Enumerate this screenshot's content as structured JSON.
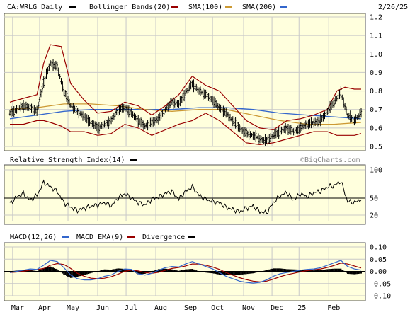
{
  "header": {
    "symbol_label": "CA:WRLG Daily",
    "date": "2/26/25"
  },
  "watermark": "©BigCharts.com",
  "months": [
    "Mar",
    "Apr",
    "May",
    "Jun",
    "Jul",
    "Aug",
    "Sep",
    "Oct",
    "Nov",
    "Dec",
    "25",
    "Feb"
  ],
  "colors": {
    "panel_bg": "#ffffdd",
    "price_bar": "#000000",
    "bollinger": "#990000",
    "sma100": "#cc9933",
    "sma200": "#3366cc",
    "rsi": "#000000",
    "macd": "#3366cc",
    "macd_ema": "#990000",
    "divergence": "#000000"
  },
  "chart_data": [
    {
      "type": "line",
      "panel": "price",
      "title": "CA:WRLG Daily",
      "legend": [
        {
          "name": "CA:WRLG Daily",
          "color": "#000000"
        },
        {
          "name": "Bollinger Bands(20)",
          "color": "#990000"
        },
        {
          "name": "SMA(100)",
          "color": "#cc9933"
        },
        {
          "name": "SMA(200)",
          "color": "#3366cc"
        }
      ],
      "x_labels": [
        "Mar",
        "Apr",
        "May",
        "Jun",
        "Jul",
        "Aug",
        "Sep",
        "Oct",
        "Nov",
        "Dec",
        "25",
        "Feb"
      ],
      "y_ticks": [
        "1.2",
        "1.1",
        "1.0",
        "0.9",
        "0.8",
        "0.7",
        "0.6",
        "0.5"
      ],
      "ylim": [
        0.5,
        1.2
      ],
      "series": [
        {
          "name": "CA:WRLG Daily",
          "kind": "ohlc-close",
          "color": "#000000",
          "x": [
            0,
            5,
            10,
            15,
            20,
            25,
            30,
            35,
            40,
            45,
            50,
            55,
            60,
            65,
            70,
            75,
            80,
            85,
            90,
            95,
            100,
            105,
            110,
            115,
            120,
            125,
            130,
            135,
            140,
            145,
            150,
            155,
            160,
            165,
            170,
            175,
            180,
            185,
            190,
            195,
            200,
            205,
            210,
            215,
            220,
            225,
            230,
            235,
            240,
            245,
            250,
            255,
            260
          ],
          "y": [
            0.68,
            0.7,
            0.72,
            0.71,
            0.69,
            0.85,
            0.95,
            0.93,
            0.8,
            0.72,
            0.69,
            0.66,
            0.63,
            0.6,
            0.62,
            0.64,
            0.7,
            0.71,
            0.68,
            0.64,
            0.61,
            0.63,
            0.65,
            0.7,
            0.74,
            0.73,
            0.79,
            0.84,
            0.8,
            0.78,
            0.75,
            0.71,
            0.68,
            0.64,
            0.6,
            0.57,
            0.56,
            0.54,
            0.53,
            0.56,
            0.58,
            0.6,
            0.58,
            0.6,
            0.62,
            0.63,
            0.64,
            0.69,
            0.74,
            0.79,
            0.67,
            0.64,
            0.68
          ]
        },
        {
          "name": "Bollinger Bands(20) upper",
          "color": "#990000",
          "x": [
            0,
            10,
            20,
            25,
            30,
            38,
            45,
            55,
            65,
            75,
            85,
            95,
            105,
            115,
            125,
            135,
            145,
            155,
            165,
            175,
            185,
            195,
            205,
            215,
            225,
            235,
            242,
            248,
            255,
            260
          ],
          "y": [
            0.74,
            0.76,
            0.78,
            0.95,
            1.05,
            1.04,
            0.84,
            0.75,
            0.68,
            0.69,
            0.74,
            0.72,
            0.67,
            0.72,
            0.78,
            0.88,
            0.83,
            0.8,
            0.72,
            0.64,
            0.6,
            0.59,
            0.64,
            0.65,
            0.67,
            0.7,
            0.8,
            0.82,
            0.81,
            0.81
          ]
        },
        {
          "name": "Bollinger Bands(20) lower",
          "color": "#990000",
          "x": [
            0,
            10,
            20,
            25,
            30,
            38,
            45,
            55,
            65,
            75,
            85,
            95,
            105,
            115,
            125,
            135,
            145,
            155,
            165,
            175,
            185,
            195,
            205,
            215,
            225,
            235,
            242,
            248,
            255,
            260
          ],
          "y": [
            0.62,
            0.62,
            0.64,
            0.64,
            0.63,
            0.61,
            0.58,
            0.58,
            0.56,
            0.57,
            0.62,
            0.6,
            0.56,
            0.59,
            0.62,
            0.64,
            0.68,
            0.64,
            0.58,
            0.52,
            0.51,
            0.52,
            0.54,
            0.56,
            0.58,
            0.58,
            0.56,
            0.56,
            0.56,
            0.57
          ]
        },
        {
          "name": "SMA(100)",
          "color": "#cc9933",
          "x": [
            0,
            20,
            40,
            60,
            80,
            100,
            120,
            140,
            160,
            180,
            200,
            220,
            240,
            260
          ],
          "y": [
            0.7,
            0.71,
            0.73,
            0.73,
            0.72,
            0.7,
            0.69,
            0.7,
            0.7,
            0.67,
            0.64,
            0.62,
            0.62,
            0.63
          ]
        },
        {
          "name": "SMA(200)",
          "color": "#3366cc",
          "x": [
            0,
            20,
            40,
            60,
            80,
            100,
            120,
            140,
            160,
            180,
            200,
            220,
            240,
            260
          ],
          "y": [
            0.65,
            0.67,
            0.69,
            0.7,
            0.7,
            0.7,
            0.7,
            0.71,
            0.71,
            0.7,
            0.68,
            0.67,
            0.66,
            0.65
          ]
        }
      ]
    },
    {
      "type": "line",
      "panel": "rsi",
      "title": "Relative Strength Index(14)",
      "legend": [
        {
          "name": "Relative Strength Index(14)",
          "color": "#000000"
        }
      ],
      "y_ticks": [
        "100",
        "50",
        "20"
      ],
      "ylim": [
        0,
        100
      ],
      "reference_line": 50,
      "series": [
        {
          "name": "Relative Strength Index(14)",
          "color": "#000000",
          "x": [
            0,
            5,
            10,
            15,
            20,
            25,
            30,
            35,
            40,
            45,
            50,
            55,
            60,
            65,
            70,
            75,
            80,
            85,
            90,
            95,
            100,
            105,
            110,
            115,
            120,
            125,
            130,
            135,
            140,
            145,
            150,
            155,
            160,
            165,
            170,
            175,
            180,
            185,
            190,
            195,
            200,
            205,
            210,
            215,
            220,
            225,
            230,
            235,
            240,
            245,
            250,
            255,
            260
          ],
          "y": [
            40,
            52,
            58,
            46,
            55,
            78,
            70,
            62,
            42,
            34,
            28,
            32,
            36,
            38,
            42,
            36,
            50,
            58,
            50,
            42,
            38,
            48,
            52,
            58,
            62,
            48,
            62,
            70,
            55,
            48,
            44,
            42,
            34,
            30,
            26,
            32,
            36,
            26,
            24,
            42,
            54,
            60,
            46,
            58,
            52,
            60,
            62,
            70,
            72,
            80,
            44,
            42,
            48
          ]
        }
      ]
    },
    {
      "type": "line",
      "panel": "macd",
      "title": "MACD(12,26)",
      "legend": [
        {
          "name": "MACD(12,26)",
          "color": "#000000"
        },
        {
          "name": "MACD EMA(9)",
          "color": "#3366cc"
        },
        {
          "name": "Divergence",
          "color": "#990000"
        }
      ],
      "y_ticks": [
        "0.10",
        "0.05",
        "0.00",
        "-0.05",
        "-0.10"
      ],
      "ylim": [
        -0.1,
        0.1
      ],
      "series": [
        {
          "name": "MACD(12,26)",
          "color": "#3366cc",
          "x": [
            0,
            5,
            10,
            15,
            20,
            25,
            30,
            35,
            40,
            45,
            50,
            55,
            60,
            65,
            70,
            75,
            80,
            85,
            90,
            95,
            100,
            105,
            110,
            115,
            120,
            125,
            130,
            135,
            140,
            145,
            150,
            155,
            160,
            165,
            170,
            175,
            180,
            185,
            190,
            195,
            200,
            205,
            210,
            215,
            220,
            225,
            230,
            235,
            240,
            245,
            250,
            255,
            260
          ],
          "y": [
            -0.005,
            0.0,
            0.005,
            0.01,
            0.008,
            0.025,
            0.045,
            0.04,
            0.015,
            -0.015,
            -0.03,
            -0.035,
            -0.035,
            -0.03,
            -0.02,
            -0.015,
            0.0,
            0.01,
            0.008,
            -0.01,
            -0.015,
            -0.008,
            0.005,
            0.015,
            0.02,
            0.018,
            0.03,
            0.04,
            0.03,
            0.02,
            0.01,
            -0.005,
            -0.02,
            -0.03,
            -0.04,
            -0.045,
            -0.048,
            -0.045,
            -0.035,
            -0.02,
            -0.01,
            -0.005,
            0.0,
            0.005,
            0.008,
            0.01,
            0.015,
            0.025,
            0.035,
            0.045,
            0.02,
            0.01,
            0.005
          ]
        },
        {
          "name": "MACD EMA(9)",
          "color": "#990000",
          "x": [
            0,
            5,
            10,
            15,
            20,
            25,
            30,
            35,
            40,
            45,
            50,
            55,
            60,
            65,
            70,
            75,
            80,
            85,
            90,
            95,
            100,
            105,
            110,
            115,
            120,
            125,
            130,
            135,
            140,
            145,
            150,
            155,
            160,
            165,
            170,
            175,
            180,
            185,
            190,
            195,
            200,
            205,
            210,
            215,
            220,
            225,
            230,
            235,
            240,
            245,
            250,
            255,
            260
          ],
          "y": [
            -0.005,
            -0.003,
            0.0,
            0.005,
            0.007,
            0.012,
            0.025,
            0.032,
            0.028,
            0.012,
            -0.008,
            -0.02,
            -0.028,
            -0.03,
            -0.028,
            -0.022,
            -0.012,
            0.0,
            0.005,
            0.002,
            -0.005,
            -0.008,
            -0.004,
            0.004,
            0.012,
            0.016,
            0.022,
            0.03,
            0.03,
            0.025,
            0.018,
            0.008,
            -0.005,
            -0.016,
            -0.026,
            -0.034,
            -0.04,
            -0.043,
            -0.04,
            -0.032,
            -0.022,
            -0.014,
            -0.008,
            -0.002,
            0.003,
            0.006,
            0.01,
            0.016,
            0.024,
            0.034,
            0.03,
            0.022,
            0.014
          ]
        }
      ]
    }
  ]
}
